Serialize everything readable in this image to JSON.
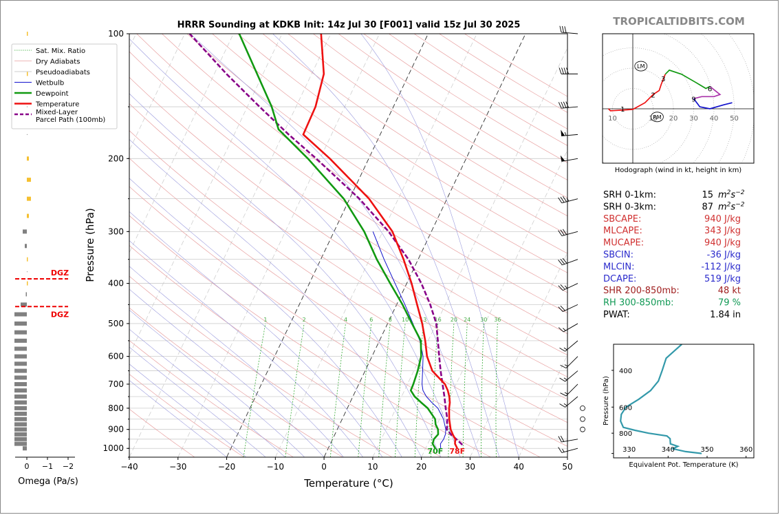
{
  "header": {
    "title": "HRRR Sounding at KDKB Init: 14z Jul 30 [F001] valid 15z Jul 30 2025",
    "brand": "TROPICALTIDBITS.COM"
  },
  "colors": {
    "temperature": "#ee1111",
    "dewpoint": "#119911",
    "wetbulb": "#1111cc",
    "parcel": "#880088",
    "dry_adiabat": "#e8a0a0",
    "pseudoadiabat": "#bbbbbb",
    "mixing_ratio": "#33aa33",
    "theta_e": "#3399aa",
    "omega_up": "#f5c030",
    "omega_down": "#808080",
    "dgz": "#ee0000"
  },
  "chart_data": [
    {
      "id": "skewt",
      "type": "line",
      "xlabel": "Temperature (°C)",
      "ylabel": "Pressure (hPa)",
      "xlim": [
        -40,
        50
      ],
      "ylim": [
        1050,
        100
      ],
      "y_scale": "log",
      "x_ticks": [
        "−40",
        "−30",
        "−20",
        "−10",
        "0",
        "10",
        "20",
        "30",
        "40",
        "50"
      ],
      "y_ticks": [
        "100",
        "200",
        "300",
        "400",
        "500",
        "600",
        "700",
        "800",
        "900",
        "1000"
      ],
      "legend_position": "top-left",
      "legend": [
        "Sat. Mix. Ratio",
        "Dry Adiabats",
        "Pseudoadiabats",
        "Wetbulb",
        "Dewpoint",
        "Temperature",
        "Mixed-Layer\nParcel Path (100mb)"
      ],
      "mixing_ratio_labels": [
        "1",
        "2",
        "4",
        "6",
        "8",
        "10",
        "13",
        "16",
        "20",
        "24",
        "30",
        "36"
      ],
      "surface_labels": {
        "dewpoint": "70F",
        "temperature": "78F"
      },
      "series": [
        {
          "name": "Temperature",
          "points": [
            [
              1000,
              26.5
            ],
            [
              975,
              25.6
            ],
            [
              950,
              25.2
            ],
            [
              925,
              24.2
            ],
            [
              900,
              23.3
            ],
            [
              850,
              22.0
            ],
            [
              800,
              20.9
            ],
            [
              775,
              20.5
            ],
            [
              750,
              19.8
            ],
            [
              725,
              18.9
            ],
            [
              700,
              17.7
            ],
            [
              650,
              13.8
            ],
            [
              600,
              11.3
            ],
            [
              550,
              9.4
            ],
            [
              500,
              7.1
            ],
            [
              450,
              4.2
            ],
            [
              400,
              1.0
            ],
            [
              350,
              -3.0
            ],
            [
              300,
              -8.0
            ],
            [
              250,
              -16.0
            ],
            [
              200,
              -28.0
            ],
            [
              175,
              -35.8
            ],
            [
              150,
              -36.0
            ],
            [
              125,
              -37.5
            ],
            [
              100,
              -42.0
            ]
          ]
        },
        {
          "name": "Dewpoint",
          "points": [
            [
              1000,
              22.0
            ],
            [
              975,
              21.0
            ],
            [
              950,
              20.8
            ],
            [
              925,
              21.2
            ],
            [
              900,
              20.7
            ],
            [
              875,
              19.7
            ],
            [
              850,
              19.1
            ],
            [
              800,
              16.5
            ],
            [
              775,
              14.6
            ],
            [
              750,
              12.7
            ],
            [
              725,
              11.3
            ],
            [
              700,
              11.2
            ],
            [
              650,
              10.8
            ],
            [
              600,
              10.1
            ],
            [
              550,
              8.5
            ],
            [
              500,
              5.0
            ],
            [
              450,
              1.2
            ],
            [
              400,
              -3.4
            ],
            [
              350,
              -8.5
            ],
            [
              300,
              -13.8
            ],
            [
              250,
              -21.2
            ],
            [
              200,
              -32.5
            ],
            [
              170,
              -41.4
            ],
            [
              150,
              -45.0
            ],
            [
              125,
              -51.2
            ],
            [
              100,
              -58.8
            ]
          ]
        },
        {
          "name": "Wetbulb",
          "points": [
            [
              1000,
              23.1
            ],
            [
              975,
              22.6
            ],
            [
              950,
              22.8
            ],
            [
              925,
              22.7
            ],
            [
              900,
              22.3
            ],
            [
              850,
              20.8
            ],
            [
              800,
              18.6
            ],
            [
              775,
              16.8
            ],
            [
              750,
              15.1
            ],
            [
              725,
              13.8
            ],
            [
              700,
              13.0
            ],
            [
              650,
              11.8
            ],
            [
              600,
              10.5
            ],
            [
              550,
              8.3
            ],
            [
              500,
              5.2
            ],
            [
              450,
              1.7
            ],
            [
              400,
              -2.4
            ],
            [
              350,
              -7.0
            ],
            [
              300,
              -12.0
            ]
          ]
        },
        {
          "name": "Mixed-Layer Parcel Path (100mb)",
          "points": [
            [
              980,
              27.2
            ],
            [
              950,
              25.4
            ],
            [
              925,
              23.8
            ],
            [
              900,
              22.5
            ],
            [
              850,
              21.6
            ],
            [
              800,
              20.2
            ],
            [
              750,
              18.8
            ],
            [
              700,
              17.2
            ],
            [
              650,
              15.5
            ],
            [
              600,
              13.8
            ],
            [
              550,
              12.0
            ],
            [
              500,
              10.0
            ],
            [
              450,
              6.9
            ],
            [
              400,
              3.0
            ],
            [
              350,
              -2.0
            ],
            [
              300,
              -8.8
            ],
            [
              250,
              -18.0
            ],
            [
              200,
              -30.8
            ],
            [
              175,
              -38.8
            ],
            [
              150,
              -47.5
            ],
            [
              125,
              -57.5
            ],
            [
              100,
              -69.0
            ]
          ]
        }
      ]
    },
    {
      "id": "omega",
      "type": "bar",
      "xlabel": "Omega (Pa/s)",
      "x_ticks": [
        "0",
        "−1",
        "−2"
      ],
      "xlim": [
        0.3,
        -2.5
      ],
      "dgz_label": "DGZ",
      "dgz_levels": [
        390,
        455
      ],
      "levels": [
        1000,
        975,
        950,
        925,
        900,
        875,
        850,
        825,
        800,
        775,
        750,
        725,
        700,
        675,
        650,
        625,
        600,
        575,
        550,
        525,
        500,
        475,
        450,
        425,
        400,
        375,
        350,
        325,
        300,
        275,
        250,
        225,
        200,
        175,
        150,
        125,
        100
      ],
      "values": [
        0.2,
        0.6,
        0.6,
        0.6,
        0.6,
        0.6,
        0.6,
        0.6,
        0.6,
        0.6,
        0.6,
        0.6,
        0.6,
        0.6,
        0.6,
        0.6,
        0.6,
        0.6,
        0.6,
        0.6,
        0.6,
        0.6,
        0.3,
        0.05,
        -0.05,
        0,
        -0.05,
        0.1,
        0.2,
        -0.1,
        -0.2,
        -0.2,
        -0.1,
        0,
        0,
        -0.05,
        -0.05
      ]
    },
    {
      "id": "hodograph",
      "type": "line",
      "caption": "Hodograph (wind in kt, height in km)",
      "rings": [
        "10",
        "10",
        "20",
        "30",
        "40",
        "50"
      ],
      "storm_motion_labels": [
        "LM",
        "RM"
      ],
      "height_labels": [
        "1",
        "2",
        "3",
        "6",
        "9"
      ],
      "segments": [
        {
          "color": "#ee1111",
          "points": [
            [
              -12,
              0
            ],
            [
              -11,
              -1
            ],
            [
              -3,
              -0.5
            ],
            [
              0,
              -0.3
            ],
            [
              6,
              3
            ],
            [
              10,
              7
            ],
            [
              13,
              9
            ],
            [
              14,
              12
            ],
            [
              16,
              17
            ]
          ]
        },
        {
          "color": "#119911",
          "points": [
            [
              16,
              17
            ],
            [
              18,
              19
            ],
            [
              24,
              17
            ],
            [
              31,
              13
            ],
            [
              36,
              10
            ],
            [
              38,
              11
            ]
          ]
        },
        {
          "color": "#aa33aa",
          "points": [
            [
              38,
              11
            ],
            [
              43,
              7
            ],
            [
              40,
              6
            ],
            [
              34,
              6
            ],
            [
              30,
              5
            ]
          ]
        },
        {
          "color": "#1111cc",
          "points": [
            [
              30,
              5
            ],
            [
              33,
              1
            ],
            [
              38,
              0
            ],
            [
              45,
              2
            ],
            [
              49,
              3
            ]
          ]
        }
      ],
      "lm_marker": [
        4,
        21
      ],
      "rm_marker": [
        12,
        -4
      ]
    },
    {
      "id": "theta_e",
      "type": "line",
      "xlabel": "Equivalent Pot. Temperature (K)",
      "ylabel": "Pressure (hPa)",
      "x_ticks": [
        "330",
        "340",
        "350",
        "360"
      ],
      "y_ticks": [
        "400",
        "600",
        "800"
      ],
      "xlim": [
        326,
        362
      ],
      "ylim": [
        1050,
        300
      ],
      "points": [
        [
          1000,
          348.6
        ],
        [
          980,
          344.5
        ],
        [
          950,
          341.2
        ],
        [
          925,
          342.5
        ],
        [
          900,
          340.6
        ],
        [
          850,
          340.5
        ],
        [
          825,
          339.7
        ],
        [
          800,
          335.0
        ],
        [
          775,
          331.5
        ],
        [
          750,
          328.5
        ],
        [
          700,
          327.8
        ],
        [
          650,
          328.0
        ],
        [
          600,
          329.2
        ],
        [
          550,
          332.5
        ],
        [
          500,
          335.5
        ],
        [
          450,
          337.5
        ],
        [
          400,
          338.5
        ],
        [
          350,
          339.5
        ],
        [
          300,
          343.5
        ]
      ]
    }
  ],
  "indices": [
    {
      "label": "SRH 0-1km:",
      "value": "15",
      "unit": "m2s-2",
      "color": "#000000"
    },
    {
      "label": "SRH 0-3km:",
      "value": "87",
      "unit": "m2s-2",
      "color": "#000000"
    },
    {
      "label": "SBCAPE:",
      "value": "940 J/kg",
      "color": "#d03030"
    },
    {
      "label": "MLCAPE:",
      "value": "343 J/kg",
      "color": "#d03030"
    },
    {
      "label": "MUCAPE:",
      "value": "940 J/kg",
      "color": "#d03030"
    },
    {
      "label": "SBCIN:",
      "value": "-36 J/kg",
      "color": "#2b2bcc"
    },
    {
      "label": "MLCIN:",
      "value": "-112 J/kg",
      "color": "#2b2bcc"
    },
    {
      "label": "DCAPE:",
      "value": "519 J/kg",
      "color": "#2b2bcc"
    },
    {
      "label": "SHR 200-850mb:",
      "value": "48 kt",
      "color": "#a02020"
    },
    {
      "label": "RH 300-850mb:",
      "value": "79 %",
      "color": "#119955"
    },
    {
      "label": "PWAT:",
      "value": "1.84 in",
      "color": "#000000"
    }
  ],
  "wind_barbs": [
    {
      "p": 1000,
      "dir": 255,
      "spd": 15
    },
    {
      "p": 950,
      "dir": 260,
      "spd": 20
    },
    {
      "p": 900,
      "dir": 0,
      "spd": 0
    },
    {
      "p": 850,
      "dir": 0,
      "spd": 0
    },
    {
      "p": 800,
      "dir": 0,
      "spd": 0
    },
    {
      "p": 750,
      "dir": 230,
      "spd": 15
    },
    {
      "p": 700,
      "dir": 225,
      "spd": 15
    },
    {
      "p": 650,
      "dir": 230,
      "spd": 15
    },
    {
      "p": 600,
      "dir": 225,
      "spd": 15
    },
    {
      "p": 550,
      "dir": 230,
      "spd": 15
    },
    {
      "p": 500,
      "dir": 240,
      "spd": 15
    },
    {
      "p": 450,
      "dir": 245,
      "spd": 20
    },
    {
      "p": 400,
      "dir": 245,
      "spd": 25
    },
    {
      "p": 350,
      "dir": 250,
      "spd": 30
    },
    {
      "p": 300,
      "dir": 255,
      "spd": 30
    },
    {
      "p": 250,
      "dir": 255,
      "spd": 35
    },
    {
      "p": 200,
      "dir": 260,
      "spd": 50
    },
    {
      "p": 175,
      "dir": 265,
      "spd": 55
    },
    {
      "p": 150,
      "dir": 265,
      "spd": 40
    },
    {
      "p": 125,
      "dir": 270,
      "spd": 40
    },
    {
      "p": 100,
      "dir": 275,
      "spd": 30
    }
  ]
}
